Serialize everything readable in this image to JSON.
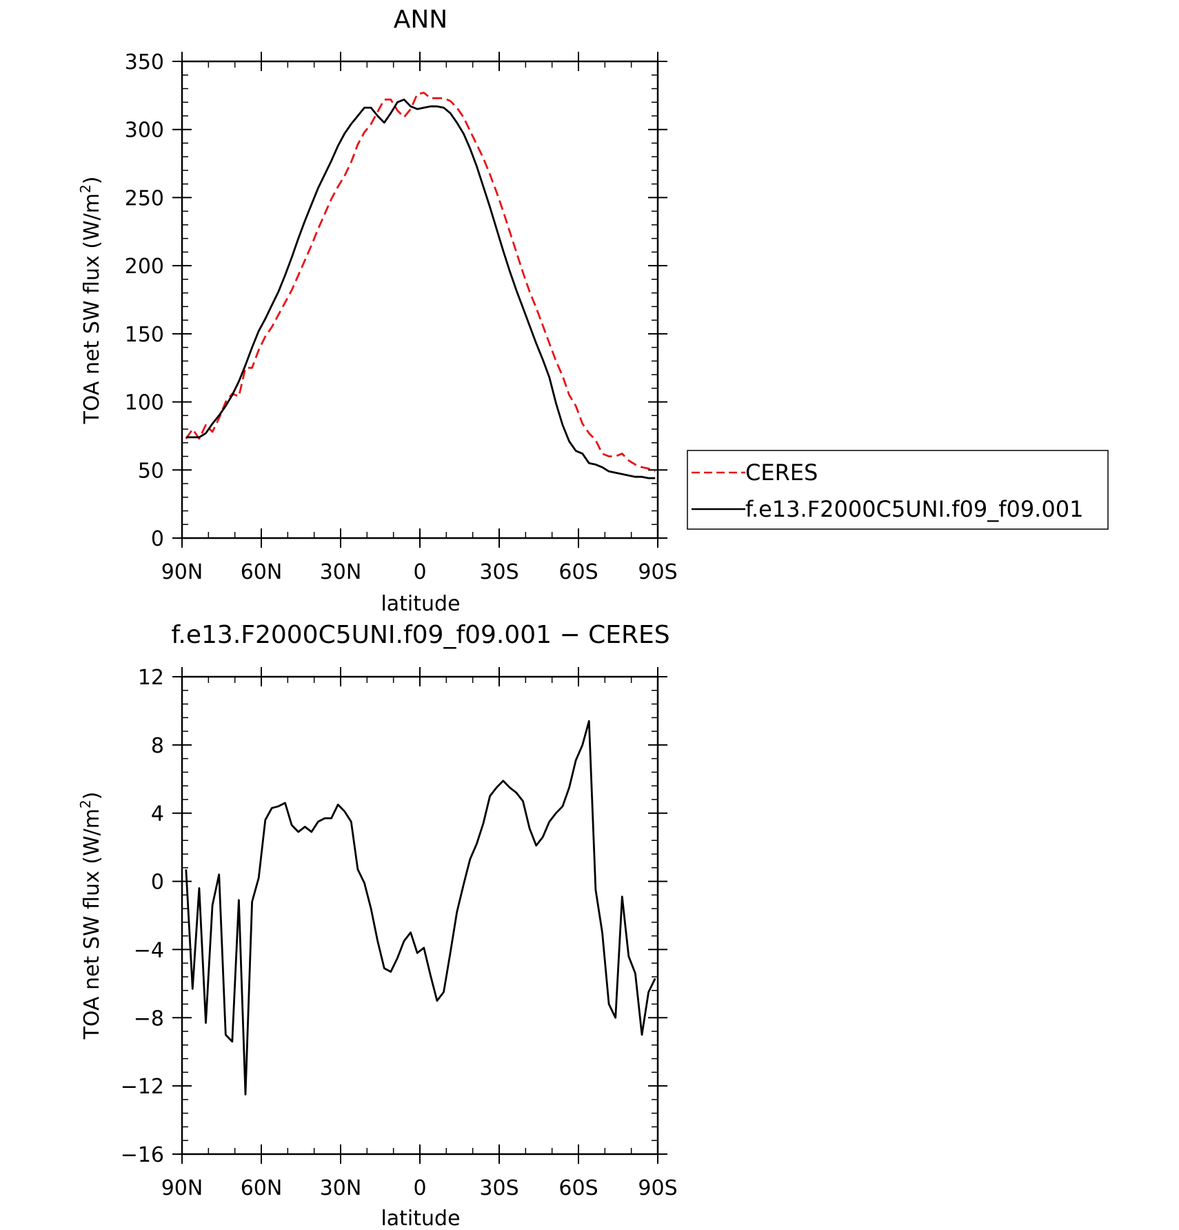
{
  "chart_data": [
    {
      "type": "line",
      "title": "ANN",
      "xlabel": "latitude",
      "ylabel": "TOA net SW flux (W/m",
      "ylabel_sup": "2",
      "ylabel_close": ")",
      "xlim": [
        90,
        -90
      ],
      "ylim": [
        0,
        350
      ],
      "xticks": [
        {
          "value": 90,
          "label": "90N"
        },
        {
          "value": 60,
          "label": "60N"
        },
        {
          "value": 30,
          "label": "30N"
        },
        {
          "value": 0,
          "label": "0"
        },
        {
          "value": -30,
          "label": "30S"
        },
        {
          "value": -60,
          "label": "60S"
        },
        {
          "value": -90,
          "label": "90S"
        }
      ],
      "yticks": [
        0,
        50,
        100,
        150,
        200,
        250,
        300,
        350
      ],
      "legend_position": "right",
      "series": [
        {
          "name": "CERES",
          "color": "#e8141a",
          "dash": "dashed",
          "x": [
            88.5,
            86,
            83.5,
            81,
            78.5,
            76,
            73.5,
            71,
            68.5,
            66,
            63.5,
            61,
            58.5,
            56,
            53.5,
            51,
            48.5,
            46,
            43.5,
            41,
            38.5,
            36,
            33.5,
            31,
            28.5,
            26,
            23.5,
            21,
            18.5,
            16,
            13.5,
            11,
            8.5,
            6,
            3.5,
            1,
            -1.5,
            -4,
            -6.5,
            -9,
            -11.5,
            -14,
            -16.5,
            -19,
            -21.5,
            -24,
            -26.5,
            -29,
            -31.5,
            -34,
            -36.5,
            -39,
            -41.5,
            -44,
            -46.5,
            -49,
            -51.5,
            -54,
            -56.5,
            -59,
            -61.5,
            -64,
            -66.5,
            -69,
            -71.5,
            -74,
            -76.5,
            -79,
            -81.5,
            -84,
            -86.5,
            -89
          ],
          "y": [
            73,
            80,
            73,
            83,
            78,
            88,
            100,
            106,
            104,
            125,
            125,
            138,
            148,
            155,
            164,
            173,
            182,
            193,
            204,
            215,
            227,
            238,
            249,
            258,
            266,
            276,
            289,
            298,
            304,
            313,
            322,
            322,
            314,
            309,
            315,
            326,
            327,
            323,
            323,
            323,
            321,
            316,
            309,
            299,
            289,
            279,
            267,
            254,
            240,
            225,
            210,
            195,
            181,
            169,
            156,
            143,
            130,
            119,
            105,
            97,
            84,
            77,
            72,
            62,
            60,
            60,
            62,
            57,
            54,
            52,
            51,
            49
          ]
        },
        {
          "name": "f.e13.F2000C5UNI.f09_f09.001",
          "color": "#000000",
          "dash": "solid",
          "x": [
            88.5,
            86,
            83.5,
            81,
            78.5,
            76,
            73.5,
            71,
            68.5,
            66,
            63.5,
            61,
            58.5,
            56,
            53.5,
            51,
            48.5,
            46,
            43.5,
            41,
            38.5,
            36,
            33.5,
            31,
            28.5,
            26,
            23.5,
            21,
            18.5,
            16,
            13.5,
            11,
            8.5,
            6,
            3.5,
            1,
            -1.5,
            -4,
            -6.5,
            -9,
            -11.5,
            -14,
            -16.5,
            -19,
            -21.5,
            -24,
            -26.5,
            -29,
            -31.5,
            -34,
            -36.5,
            -39,
            -41.5,
            -44,
            -46.5,
            -49,
            -51.5,
            -54,
            -56.5,
            -59,
            -61.5,
            -64,
            -66.5,
            -69,
            -71.5,
            -74,
            -76.5,
            -79,
            -81.5,
            -84,
            -86.5,
            -89
          ],
          "y": [
            74,
            74,
            74,
            77,
            84,
            90,
            97,
            105,
            115,
            127,
            140,
            152,
            161,
            171,
            181,
            193,
            206,
            220,
            233,
            245,
            257,
            267,
            277,
            288,
            297,
            304,
            310,
            316,
            316,
            310,
            305,
            312,
            320,
            322,
            317,
            315,
            316,
            317,
            317,
            316,
            312,
            305,
            297,
            286,
            273,
            258,
            243,
            227,
            211,
            196,
            182,
            169,
            156,
            143,
            131,
            118,
            99,
            83,
            71,
            64,
            62,
            55,
            54,
            52,
            49,
            48,
            47,
            46,
            45,
            45,
            44,
            44
          ]
        }
      ]
    },
    {
      "type": "line",
      "title": "f.e13.F2000C5UNI.f09_f09.001 − CERES",
      "xlabel": "latitude",
      "ylabel": "TOA net SW flux (W/m",
      "ylabel_sup": "2",
      "ylabel_close": ")",
      "xlim": [
        90,
        -90
      ],
      "ylim": [
        -16,
        12
      ],
      "xticks": [
        {
          "value": 90,
          "label": "90N"
        },
        {
          "value": 60,
          "label": "60N"
        },
        {
          "value": 30,
          "label": "30N"
        },
        {
          "value": 0,
          "label": "0"
        },
        {
          "value": -30,
          "label": "30S"
        },
        {
          "value": -60,
          "label": "60S"
        },
        {
          "value": -90,
          "label": "90S"
        }
      ],
      "yticks": [
        {
          "value": -16,
          "label": "−16"
        },
        {
          "value": -12,
          "label": "−12"
        },
        {
          "value": -8,
          "label": "−8"
        },
        {
          "value": -4,
          "label": "−4"
        },
        {
          "value": 0,
          "label": "0"
        },
        {
          "value": 4,
          "label": "4"
        },
        {
          "value": 8,
          "label": "8"
        },
        {
          "value": 12,
          "label": "12"
        }
      ],
      "series": [
        {
          "color": "#000000",
          "dash": "solid",
          "x": [
            88.5,
            86,
            83.5,
            81,
            78.5,
            76,
            73.5,
            71,
            68.5,
            66,
            63.5,
            61,
            58.5,
            56,
            53.5,
            51,
            48.5,
            46,
            43.5,
            41,
            38.5,
            36,
            33.5,
            31,
            28.5,
            26,
            23.5,
            21,
            18.5,
            16,
            13.5,
            11,
            8.5,
            6,
            3.5,
            1,
            -1.5,
            -4,
            -6.5,
            -9,
            -11.5,
            -14,
            -16.5,
            -19,
            -21.5,
            -24,
            -26.5,
            -29,
            -31.5,
            -34,
            -36.5,
            -39,
            -41.5,
            -44,
            -46.5,
            -49,
            -51.5,
            -54,
            -56.5,
            -59,
            -61.5,
            -64,
            -66.5,
            -69,
            -71.5,
            -74,
            -76.5,
            -79,
            -81.5,
            -84,
            -86.5,
            -89
          ],
          "y": [
            0.7,
            -6.3,
            -0.4,
            -8.3,
            -1.4,
            0.4,
            -9.0,
            -9.4,
            -1.1,
            -12.5,
            -1.2,
            0.2,
            3.6,
            4.3,
            4.4,
            4.6,
            3.3,
            2.9,
            3.2,
            2.9,
            3.5,
            3.7,
            3.7,
            4.5,
            4.1,
            3.5,
            0.7,
            -0.1,
            -1.6,
            -3.5,
            -5.1,
            -5.3,
            -4.5,
            -3.5,
            -3.0,
            -4.2,
            -3.9,
            -5.5,
            -7.0,
            -6.5,
            -4.2,
            -1.8,
            -0.2,
            1.3,
            2.2,
            3.4,
            5.0,
            5.5,
            5.9,
            5.5,
            5.2,
            4.7,
            3.1,
            2.1,
            2.6,
            3.5,
            4.0,
            4.4,
            5.5,
            7.1,
            8.0,
            9.4,
            -0.5,
            -3.0,
            -7.2,
            -8.0,
            -0.9,
            -4.4,
            -5.4,
            -9.0,
            -6.5,
            -5.7
          ]
        }
      ]
    }
  ]
}
